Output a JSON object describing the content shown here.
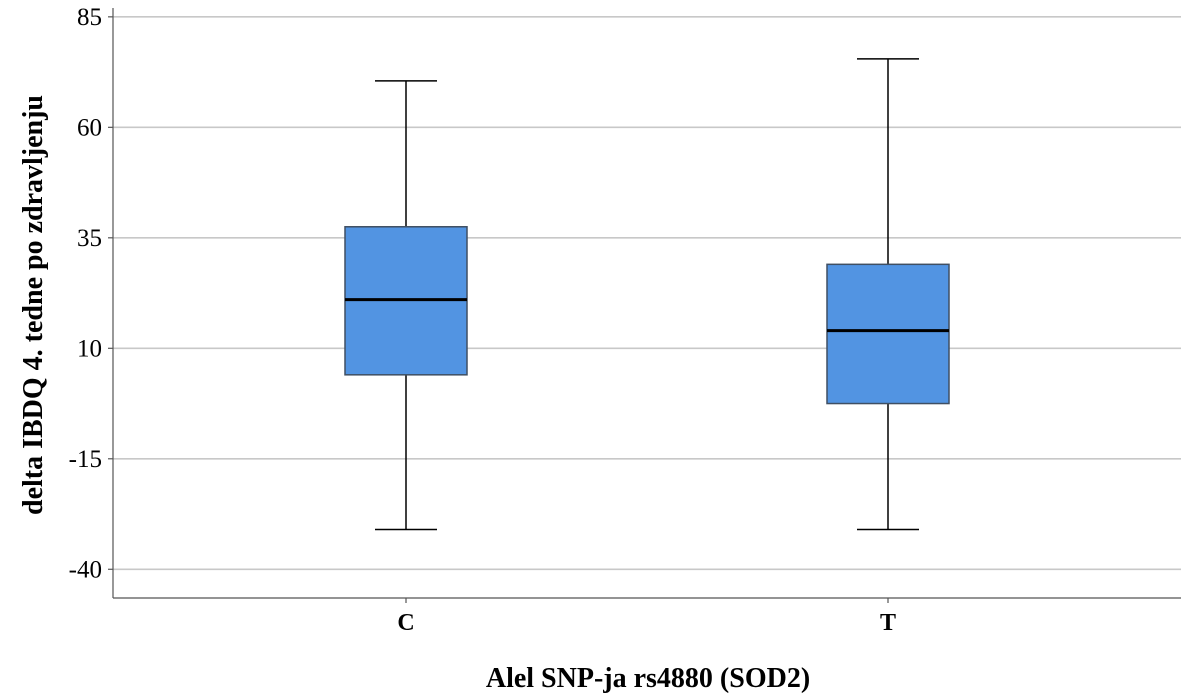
{
  "chart_data": {
    "type": "boxplot",
    "title": "",
    "xlabel": "Alel SNP-ja rs4880 (SOD2)",
    "ylabel": "delta IBDQ 4. tedne po zdravljenju",
    "ylim": [
      -46.5,
      87
    ],
    "yticks": [
      -40,
      -15,
      10,
      35,
      60,
      85
    ],
    "grid": true,
    "categories": [
      "C",
      "T"
    ],
    "boxes": [
      {
        "category": "C",
        "min": -31,
        "q1": 4,
        "median": 21,
        "q3": 37.5,
        "max": 70.5
      },
      {
        "category": "T",
        "min": -31,
        "q1": -2.5,
        "median": 14,
        "q3": 29,
        "max": 75.5
      }
    ],
    "colors": {
      "box_fill": "#5294e2",
      "box_stroke": "#3f4f63",
      "median": "#000000",
      "whisker": "#000000",
      "grid": "#c8c8c8",
      "axis": "#555555"
    }
  }
}
